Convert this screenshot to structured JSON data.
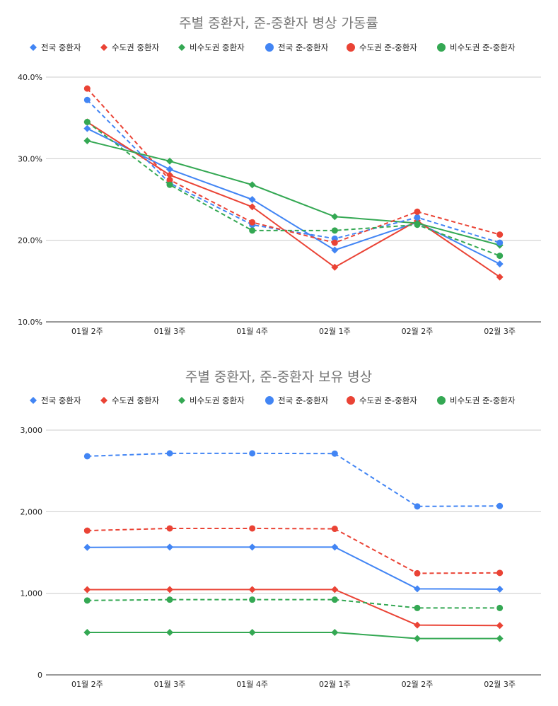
{
  "colors": {
    "national": "#4285f4",
    "capital": "#ea4335",
    "noncapital": "#34a853"
  },
  "chart_data": [
    {
      "type": "line",
      "title": "주별 중환자, 준-중환자 병상 가동률",
      "categories": [
        "01월 2주",
        "01월 3주",
        "01월 4주",
        "02월 1주",
        "02월 2주",
        "02월 3주"
      ],
      "ylim": [
        0.1,
        0.4
      ],
      "yticks": [
        0.1,
        0.2,
        0.3,
        0.4
      ],
      "ytick_labels": [
        "10.0%",
        "20.0%",
        "30.0%",
        "40.0%"
      ],
      "series": [
        {
          "name": "전국 중환자",
          "color": "#4285f4",
          "marker": "diamond",
          "dash": false,
          "values": [
            0.337,
            0.287,
            0.25,
            0.188,
            0.222,
            0.171
          ]
        },
        {
          "name": "수도권 중환자",
          "color": "#ea4335",
          "marker": "diamond",
          "dash": false,
          "values": [
            0.345,
            0.28,
            0.241,
            0.167,
            0.224,
            0.155
          ]
        },
        {
          "name": "비수도권 중환자",
          "color": "#34a853",
          "marker": "diamond",
          "dash": false,
          "values": [
            0.322,
            0.297,
            0.268,
            0.229,
            0.221,
            0.194
          ]
        },
        {
          "name": "전국 준-중환자",
          "color": "#4285f4",
          "marker": "circle",
          "dash": true,
          "values": [
            0.372,
            0.27,
            0.219,
            0.202,
            0.228,
            0.197
          ]
        },
        {
          "name": "수도권 준-중환자",
          "color": "#ea4335",
          "marker": "circle",
          "dash": true,
          "values": [
            0.386,
            0.274,
            0.222,
            0.197,
            0.235,
            0.207
          ]
        },
        {
          "name": "비수도권 준-중환자",
          "color": "#34a853",
          "marker": "circle",
          "dash": true,
          "values": [
            0.345,
            0.268,
            0.212,
            0.212,
            0.219,
            0.181
          ]
        }
      ]
    },
    {
      "type": "line",
      "title": "주별 중환자, 준-중환자 보유 병상",
      "categories": [
        "01월 2주",
        "01월 3주",
        "01월 4주",
        "02월 1주",
        "02월 2주",
        "02월 3주"
      ],
      "ylim": [
        0,
        3000
      ],
      "yticks": [
        0,
        1000,
        2000,
        3000
      ],
      "ytick_labels": [
        "0",
        "1,000",
        "2,000",
        "3,000"
      ],
      "series": [
        {
          "name": "전국 중환자",
          "color": "#4285f4",
          "marker": "diamond",
          "dash": false,
          "values": [
            1563,
            1566,
            1566,
            1566,
            1055,
            1050
          ]
        },
        {
          "name": "수도권 중환자",
          "color": "#ea4335",
          "marker": "diamond",
          "dash": false,
          "values": [
            1045,
            1046,
            1046,
            1046,
            610,
            605
          ]
        },
        {
          "name": "비수도권 중환자",
          "color": "#34a853",
          "marker": "diamond",
          "dash": false,
          "values": [
            520,
            520,
            520,
            520,
            445,
            445
          ]
        },
        {
          "name": "전국 준-중환자",
          "color": "#4285f4",
          "marker": "circle",
          "dash": true,
          "values": [
            2680,
            2715,
            2715,
            2712,
            2065,
            2070
          ]
        },
        {
          "name": "수도권 준-중환자",
          "color": "#ea4335",
          "marker": "circle",
          "dash": true,
          "values": [
            1768,
            1795,
            1795,
            1790,
            1245,
            1250
          ]
        },
        {
          "name": "비수도권 준-중환자",
          "color": "#34a853",
          "marker": "circle",
          "dash": true,
          "values": [
            912,
            922,
            922,
            922,
            820,
            820
          ]
        }
      ]
    }
  ]
}
